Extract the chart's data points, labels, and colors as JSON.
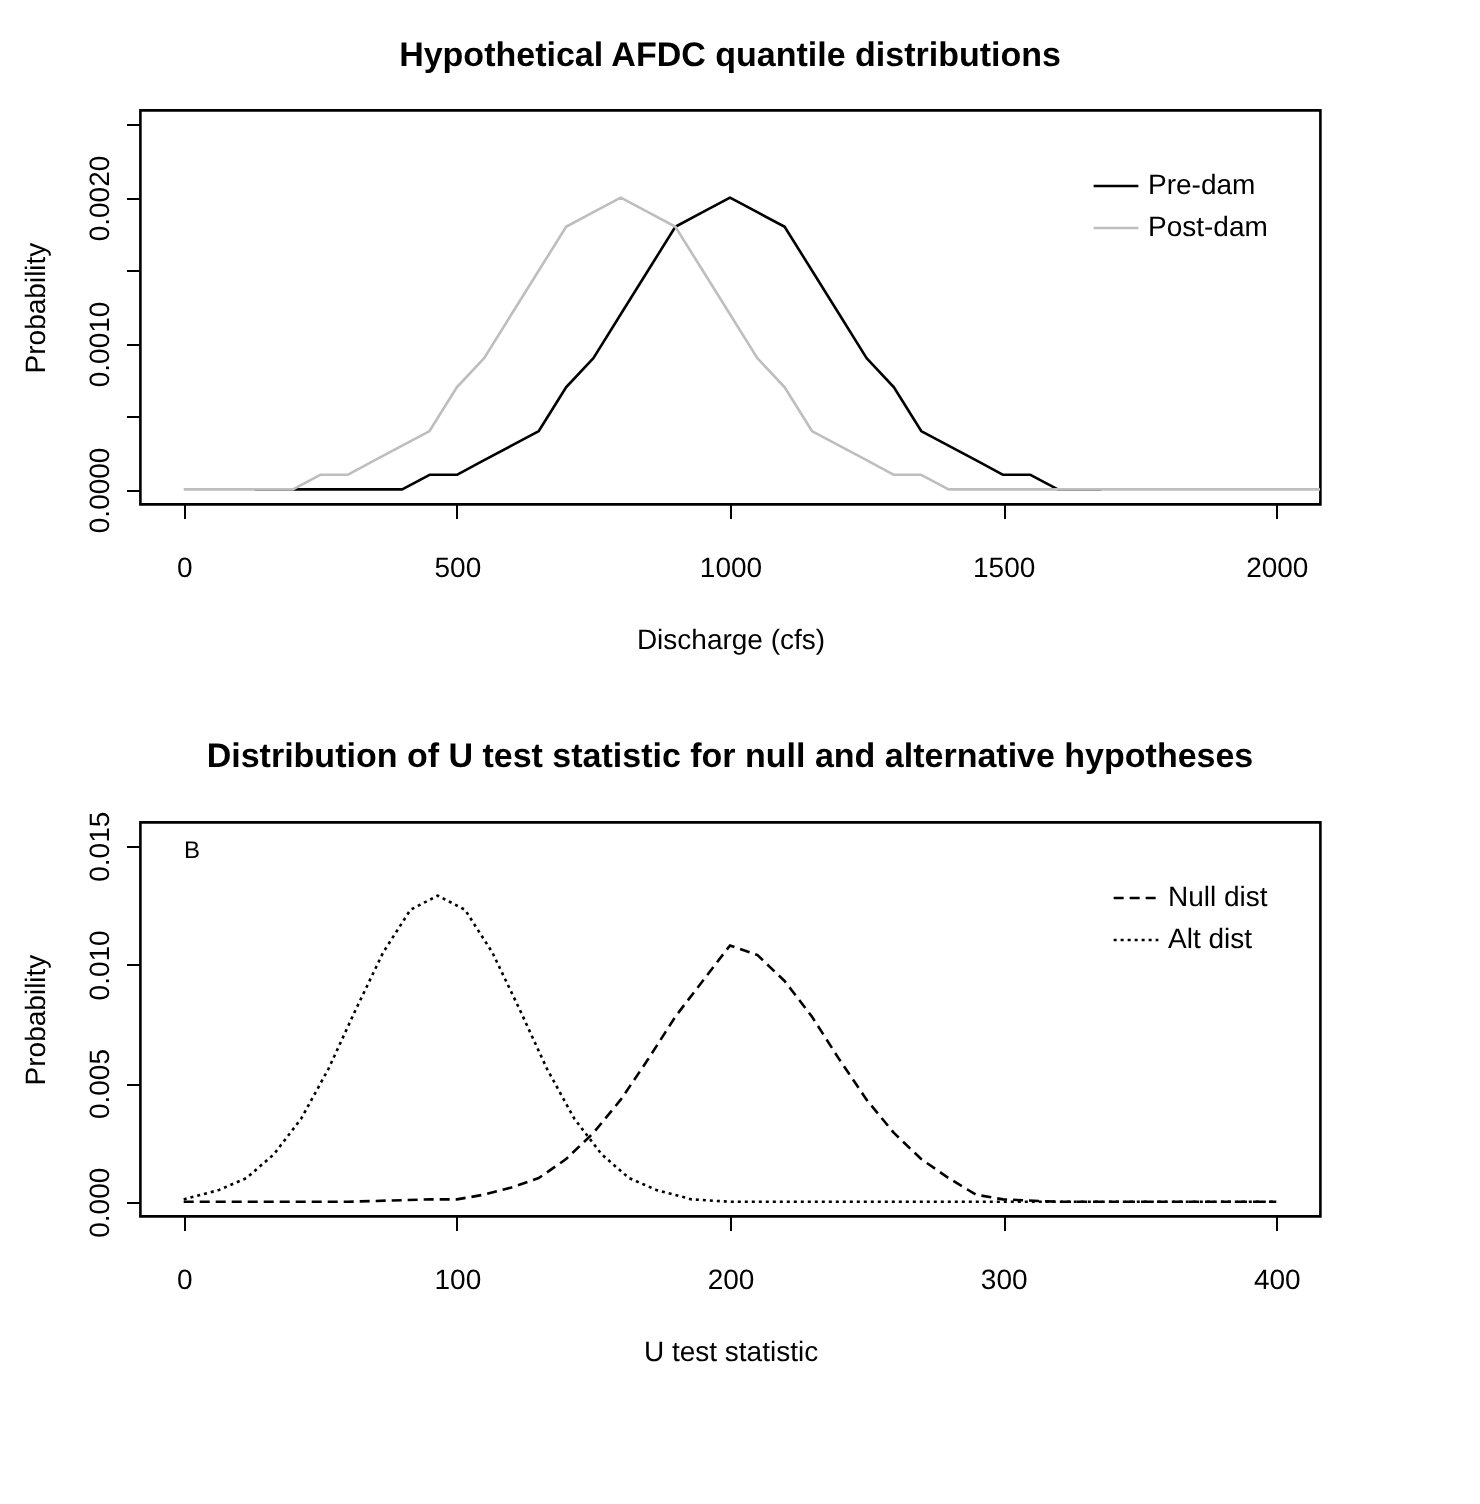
{
  "chart_data": [
    {
      "type": "line",
      "title": "Hypothetical AFDC quantile distributions",
      "xlabel": "Discharge (cfs)",
      "ylabel": "Probability",
      "xlim": [
        -80,
        2080
      ],
      "xticks": [
        0,
        500,
        1000,
        1500,
        2000
      ],
      "ylim": [
        -0.0001,
        0.0026
      ],
      "yticks": [
        {
          "value": 0,
          "label": "0.0000"
        },
        {
          "value": 0.0005,
          "label": null
        },
        {
          "value": 0.001,
          "label": "0.0010"
        },
        {
          "value": 0.0015,
          "label": null
        },
        {
          "value": 0.002,
          "label": "0.0020"
        },
        {
          "value": 0.0025,
          "label": null
        }
      ],
      "legend": "top right",
      "grid": false,
      "line_style": "solid",
      "series": [
        {
          "name": "Pre-dam",
          "color": "#000000",
          "x": [
            130,
            300,
            400,
            450,
            500,
            550,
            600,
            650,
            700,
            750,
            800,
            850,
            900,
            950,
            1000,
            1050,
            1100,
            1150,
            1200,
            1250,
            1300,
            1350,
            1400,
            1450,
            1500,
            1550,
            1600,
            1680
          ],
          "values": [
            0,
            0,
            0,
            0.0001,
            0.0001,
            0.0002,
            0.0003,
            0.0004,
            0.0007,
            0.0009,
            0.0012,
            0.0015,
            0.0018,
            0.0019,
            0.002,
            0.0019,
            0.0018,
            0.0015,
            0.0012,
            0.0009,
            0.0007,
            0.0004,
            0.0003,
            0.0002,
            0.0001,
            0.0001,
            0,
            0
          ]
        },
        {
          "name": "Post-dam",
          "color": "#bebebe",
          "x": [
            0,
            100,
            200,
            250,
            300,
            350,
            400,
            450,
            500,
            550,
            600,
            650,
            700,
            750,
            800,
            850,
            900,
            950,
            1000,
            1050,
            1100,
            1150,
            1200,
            1250,
            1300,
            1350,
            1400,
            1500,
            1700,
            2080
          ],
          "values": [
            0,
            0,
            0,
            0.0001,
            0.0001,
            0.0002,
            0.0003,
            0.0004,
            0.0007,
            0.0009,
            0.0012,
            0.0015,
            0.0018,
            0.0019,
            0.002,
            0.0019,
            0.0018,
            0.0015,
            0.0012,
            0.0009,
            0.0007,
            0.0004,
            0.0003,
            0.0002,
            0.0001,
            0.0001,
            0,
            0,
            0,
            0
          ]
        }
      ]
    },
    {
      "type": "line",
      "title": "Distribution of U test statistic for null and alternative hypotheses",
      "xlabel": "U test statistic",
      "ylabel": "Probability",
      "annotations": [
        "B"
      ],
      "xlim": [
        -16,
        416
      ],
      "xticks": [
        0,
        100,
        200,
        300,
        400
      ],
      "ylim": [
        -0.0006,
        0.016
      ],
      "yticks": [
        {
          "value": 0,
          "label": "0.000"
        },
        {
          "value": 0.005,
          "label": "0.005"
        },
        {
          "value": 0.01,
          "label": "0.010"
        },
        {
          "value": 0.015,
          "label": "0.015"
        }
      ],
      "legend": "top right",
      "grid": false,
      "series": [
        {
          "name": "Null dist",
          "color": "#000000",
          "line_style": "dashed",
          "x": [
            0,
            60,
            90,
            100,
            110,
            120,
            130,
            140,
            150,
            160,
            170,
            180,
            190,
            200,
            210,
            220,
            230,
            240,
            250,
            260,
            270,
            280,
            290,
            300,
            320,
            400
          ],
          "values": [
            0,
            0,
            0.0001,
            0.0001,
            0.0003,
            0.0006,
            0.001,
            0.0018,
            0.0029,
            0.0043,
            0.006,
            0.0078,
            0.0093,
            0.0108,
            0.0104,
            0.0093,
            0.0078,
            0.006,
            0.0043,
            0.0029,
            0.0018,
            0.001,
            0.0003,
            0.0001,
            0,
            0
          ]
        },
        {
          "name": "Alt dist",
          "color": "#000000",
          "line_style": "dotted",
          "x": [
            0,
            13,
            23,
            33,
            43,
            53,
            63,
            73,
            83,
            93,
            103,
            113,
            123,
            133,
            143,
            153,
            163,
            173,
            186,
            200,
            400
          ],
          "values": [
            0.0001,
            0.0005,
            0.001,
            0.002,
            0.0035,
            0.0056,
            0.0081,
            0.0105,
            0.0123,
            0.0129,
            0.0123,
            0.0105,
            0.0081,
            0.0056,
            0.0035,
            0.002,
            0.001,
            0.0005,
            0.0001,
            0,
            0
          ]
        }
      ]
    }
  ]
}
